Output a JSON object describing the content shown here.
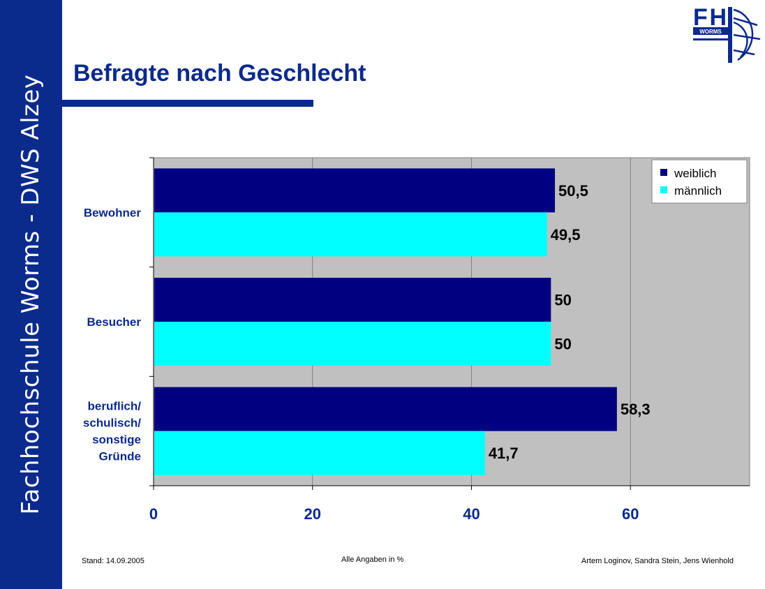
{
  "sidebar": {
    "text": "Fachhochschule Worms - DWS Alzey"
  },
  "slide": {
    "title": "Befragte nach Geschlecht"
  },
  "logo": {
    "text": "FH",
    "subtext": "WORMS"
  },
  "footer": {
    "left": "Stand: 14.09.2005",
    "center": "Alle Angaben in %",
    "right": "Artem Loginov, Sandra Stein, Jens Wienhold"
  },
  "colors": {
    "brand": "#0a2a8c",
    "weiblich": "#000080",
    "maennlich": "#00ffff",
    "plot_bg": "#c0c0c0"
  },
  "chart_data": {
    "type": "bar",
    "orientation": "horizontal",
    "categories": [
      "Bewohner",
      "Besucher",
      "beruflich/\nschulisch/\nsonstige\nGründe"
    ],
    "series": [
      {
        "name": "weiblich",
        "values": [
          50.5,
          50,
          58.3
        ],
        "labels": [
          "50,5",
          "50",
          "58,3"
        ],
        "color": "#000080"
      },
      {
        "name": "männlich",
        "values": [
          49.5,
          50,
          41.7
        ],
        "labels": [
          "49,5",
          "50",
          "41,7"
        ],
        "color": "#00ffff"
      }
    ],
    "xlim": [
      0,
      75
    ],
    "xticks": [
      0,
      20,
      40,
      60
    ],
    "xtick_labels": [
      "0",
      "20",
      "40",
      "60"
    ],
    "grid": true,
    "legend": "top-right"
  }
}
